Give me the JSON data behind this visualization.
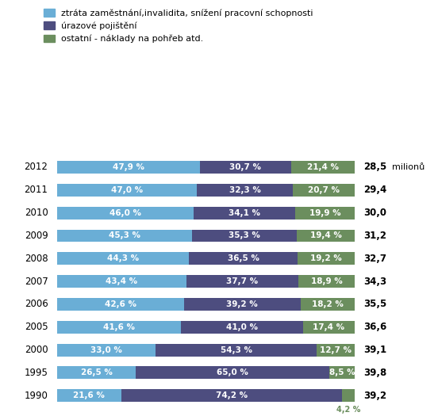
{
  "years": [
    "2012",
    "2011",
    "2010",
    "2009",
    "2008",
    "2007",
    "2006",
    "2005",
    "2000",
    "1995",
    "1990"
  ],
  "blue_vals": [
    47.9,
    47.0,
    46.0,
    45.3,
    44.3,
    43.4,
    42.6,
    41.6,
    33.0,
    26.5,
    21.6
  ],
  "purple_vals": [
    30.7,
    32.3,
    34.1,
    35.3,
    36.5,
    37.7,
    39.2,
    41.0,
    54.3,
    65.0,
    74.2
  ],
  "green_vals": [
    21.4,
    20.7,
    19.9,
    19.4,
    19.2,
    18.9,
    18.2,
    17.4,
    12.7,
    8.5,
    4.2
  ],
  "millions": [
    "28,5",
    "29,4",
    "30,0",
    "31,2",
    "32,7",
    "34,3",
    "35,5",
    "36,6",
    "39,1",
    "39,8",
    "39,2"
  ],
  "miliony_label": "milionů",
  "color_blue": "#6aaed6",
  "color_purple": "#4d4d7f",
  "color_green": "#6b8e5e",
  "legend_labels": [
    "ztráta zaměstnání,invalidita, snížení pracovní schopnosti",
    "úrazové pojištění",
    "ostatní - náklady na pohřeb atd."
  ],
  "bg_color": "#ffffff",
  "bar_height": 0.55,
  "fontsize_bar": 7.5,
  "fontsize_axis": 8.5,
  "fontsize_legend": 8.0,
  "fontsize_millions": 8.5
}
